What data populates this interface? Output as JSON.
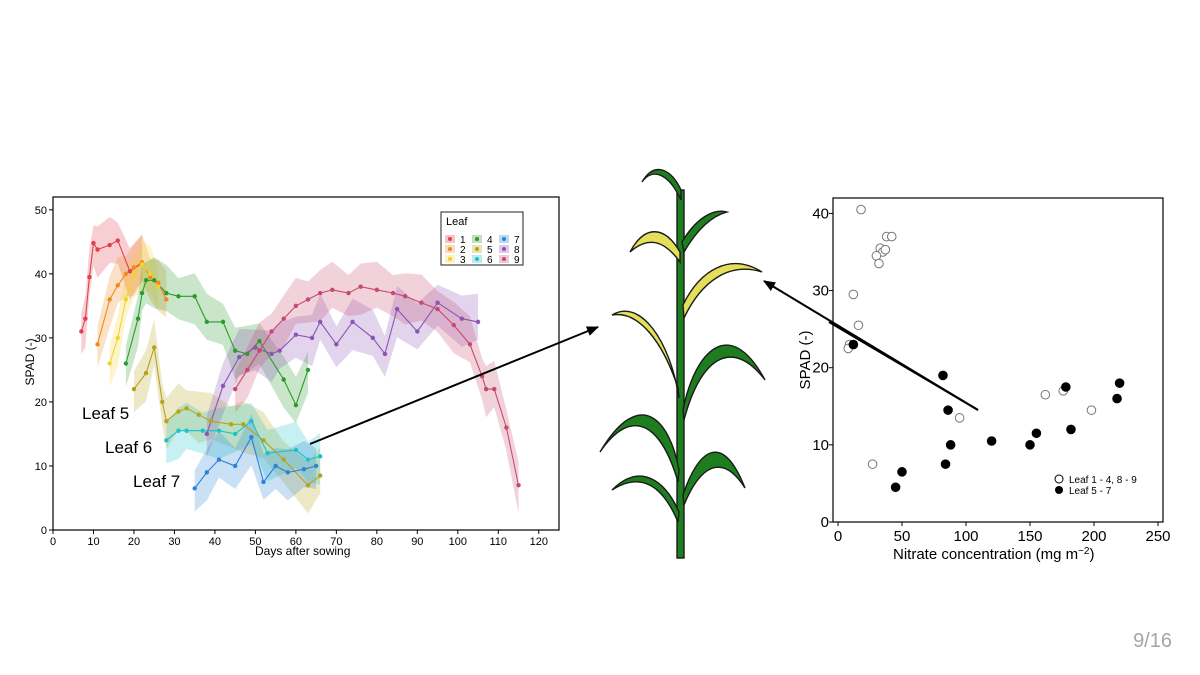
{
  "slide": {
    "page_number": "9/16"
  },
  "chart_data": [
    {
      "type": "line",
      "xlabel": "Days after sowing",
      "ylabel": "SPAD (-)",
      "xlim": [
        0,
        125
      ],
      "ylim": [
        0,
        52
      ],
      "xticks": [
        "0",
        "10",
        "20",
        "30",
        "40",
        "50",
        "60",
        "70",
        "80",
        "90",
        "100",
        "110",
        "120"
      ],
      "yticks": [
        "0",
        "10",
        "20",
        "30",
        "40",
        "50"
      ],
      "legend": {
        "title": "Leaf",
        "position": "top-right"
      },
      "annotations": [
        "Leaf 5",
        "Leaf 6",
        "Leaf 7"
      ],
      "series": [
        {
          "name": "1",
          "color": "#e0404b",
          "x": [
            7,
            8,
            9,
            10,
            11,
            14,
            16,
            19,
            22
          ],
          "y": [
            31,
            33,
            39.5,
            44.8,
            43.8,
            44.5,
            45.2,
            40.4,
            41.7
          ]
        },
        {
          "name": "2",
          "color": "#f08a1e",
          "x": [
            11,
            14,
            16,
            18,
            20,
            22,
            24,
            26,
            28
          ],
          "y": [
            29,
            36,
            38.2,
            40,
            41,
            41.8,
            39.5,
            38.6,
            36
          ]
        },
        {
          "name": "3",
          "color": "#f2d32e",
          "x": [
            14,
            16,
            18,
            20,
            22,
            24,
            26
          ],
          "y": [
            26,
            30,
            36,
            40,
            41.5,
            40,
            38
          ]
        },
        {
          "name": "4",
          "color": "#2c9a2c",
          "x": [
            18,
            21,
            22,
            23,
            25,
            28,
            31,
            35,
            38,
            42,
            45,
            48,
            51,
            57,
            60,
            63
          ],
          "y": [
            26,
            33,
            37,
            39,
            39,
            37,
            36.5,
            36.5,
            32.5,
            32.5,
            28,
            27.5,
            29.5,
            23.5,
            19.5,
            25
          ]
        },
        {
          "name": "5",
          "color": "#b8a21a",
          "x": [
            20,
            23,
            25,
            27,
            28,
            31,
            33,
            36,
            39,
            44,
            47,
            52,
            57,
            63,
            66
          ],
          "y": [
            22,
            24.5,
            28.5,
            20,
            17,
            18.5,
            19,
            18,
            17,
            16.5,
            16.5,
            14,
            11,
            7,
            8.5
          ]
        },
        {
          "name": "6",
          "color": "#1bc3c9",
          "x": [
            28,
            31,
            33,
            37,
            41,
            45,
            49,
            53,
            60,
            63,
            66
          ],
          "y": [
            14,
            15.5,
            15.5,
            15.5,
            15.5,
            15,
            17,
            12,
            12.5,
            11,
            11.5
          ]
        },
        {
          "name": "7",
          "color": "#2b82d6",
          "x": [
            35,
            38,
            41,
            45,
            49,
            52,
            55,
            58,
            62,
            65
          ],
          "y": [
            6.5,
            9,
            11,
            10,
            14.5,
            7.5,
            10,
            9,
            9.5,
            10
          ]
        },
        {
          "name": "8",
          "color": "#8a55b5",
          "x": [
            38,
            42,
            46,
            50,
            54,
            56,
            60,
            64,
            66,
            70,
            74,
            79,
            82,
            85,
            90,
            95,
            101,
            105
          ],
          "y": [
            15,
            22.5,
            27,
            28.5,
            27.5,
            28,
            30.5,
            30,
            32.5,
            29,
            32.5,
            30,
            27.5,
            34.5,
            31,
            35.5,
            33,
            32.5
          ]
        },
        {
          "name": "9",
          "color": "#c74a6e",
          "x": [
            45,
            48,
            51,
            54,
            57,
            60,
            63,
            66,
            69,
            73,
            76,
            80,
            84,
            87,
            91,
            95,
            99,
            103,
            106,
            107,
            109,
            112,
            115
          ],
          "y": [
            22,
            25,
            28,
            31,
            33,
            35,
            36,
            37,
            37.5,
            37,
            38,
            37.5,
            37,
            36.5,
            35.5,
            34.5,
            32,
            29,
            24,
            22,
            22,
            16,
            7
          ]
        }
      ]
    },
    {
      "type": "scatter",
      "xlabel": "Nitrate concentration (mg m",
      "xlabel_sup": "−2",
      "xlabel_close": ")",
      "ylabel": "SPAD (-)",
      "xlim": [
        0,
        250
      ],
      "ylim": [
        0,
        42
      ],
      "xticks": [
        "0",
        "50",
        "100",
        "150",
        "200",
        "250"
      ],
      "yticks": [
        "0",
        "10",
        "20",
        "30",
        "40"
      ],
      "legend": {
        "position": "bottom-right"
      },
      "series": [
        {
          "name": "Leaf 1 - 4, 8 - 9",
          "marker": "open-circle",
          "x": [
            18,
            12,
            16,
            9,
            8,
            33,
            35,
            30,
            32,
            38,
            37,
            42,
            27,
            95,
            162,
            176,
            198
          ],
          "y": [
            40.5,
            29.5,
            25.5,
            23,
            22.5,
            35.5,
            35,
            34.5,
            33.5,
            37,
            35.3,
            37,
            7.5,
            13.5,
            16.5,
            17,
            14.5
          ]
        },
        {
          "name": "Leaf 5 - 7",
          "marker": "filled-circle",
          "x": [
            12,
            45,
            50,
            82,
            84,
            86,
            88,
            120,
            150,
            155,
            178,
            182,
            218,
            220
          ],
          "y": [
            23,
            4.5,
            6.5,
            19,
            7.5,
            14.5,
            10,
            10.5,
            10,
            11.5,
            17.5,
            12,
            16,
            18
          ]
        }
      ]
    }
  ]
}
